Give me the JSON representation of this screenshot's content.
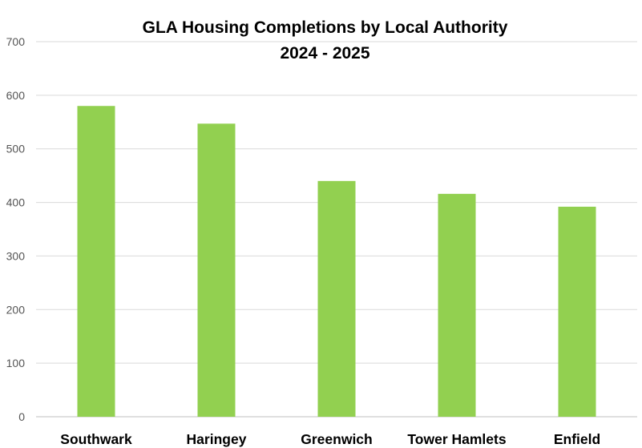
{
  "chart_data": {
    "type": "bar",
    "title": "GLA Housing Completions by Local Authority",
    "subtitle": "2024 - 2025",
    "categories": [
      "Southwark",
      "Haringey",
      "Greenwich",
      "Tower Hamlets",
      "Enfield"
    ],
    "values": [
      580,
      547,
      440,
      416,
      392
    ],
    "xlabel": "",
    "ylabel": "",
    "ylim": [
      0,
      700
    ],
    "yticks": [
      0,
      100,
      200,
      300,
      400,
      500,
      600,
      700
    ],
    "grid": true,
    "legend": "none",
    "bar_color": "#92d050",
    "gridline_color": "#d9d9d9"
  }
}
